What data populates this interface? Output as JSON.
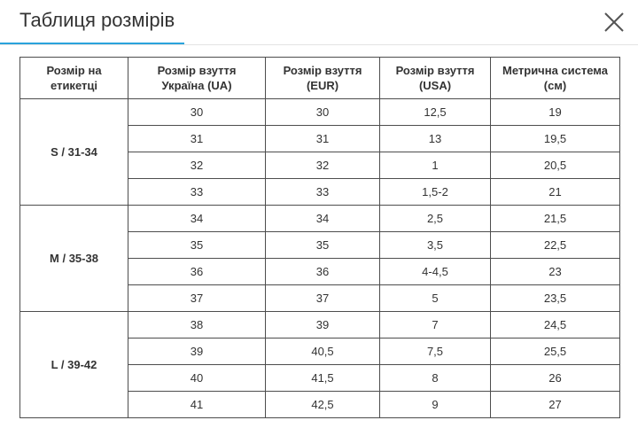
{
  "modal": {
    "title": "Таблиця розмірів",
    "close_icon": "close-icon"
  },
  "table": {
    "headers": [
      [
        "Розмір на",
        "етикетці"
      ],
      [
        "Розмір взуття",
        "Україна (UA)"
      ],
      [
        "Розмір взуття",
        "(EUR)"
      ],
      [
        "Розмір взуття",
        "(USA)"
      ],
      [
        "Метрична система",
        "(см)"
      ]
    ],
    "groups": [
      {
        "label": "S / 31-34",
        "rows": [
          [
            "30",
            "30",
            "12,5",
            "19"
          ],
          [
            "31",
            "31",
            "13",
            "19,5"
          ],
          [
            "32",
            "32",
            "1",
            "20,5"
          ],
          [
            "33",
            "33",
            "1,5-2",
            "21"
          ]
        ]
      },
      {
        "label": "M / 35-38",
        "rows": [
          [
            "34",
            "34",
            "2,5",
            "21,5"
          ],
          [
            "35",
            "35",
            "3,5",
            "22,5"
          ],
          [
            "36",
            "36",
            "4-4,5",
            "23"
          ],
          [
            "37",
            "37",
            "5",
            "23,5"
          ]
        ]
      },
      {
        "label": "L / 39-42",
        "rows": [
          [
            "38",
            "39",
            "7",
            "24,5"
          ],
          [
            "39",
            "40,5",
            "7,5",
            "25,5"
          ],
          [
            "40",
            "41,5",
            "8",
            "26"
          ],
          [
            "41",
            "42,5",
            "9",
            "27"
          ]
        ]
      }
    ]
  },
  "colors": {
    "accent": "#2aa3dc",
    "border": "#4d4d4d",
    "text": "#333333"
  }
}
